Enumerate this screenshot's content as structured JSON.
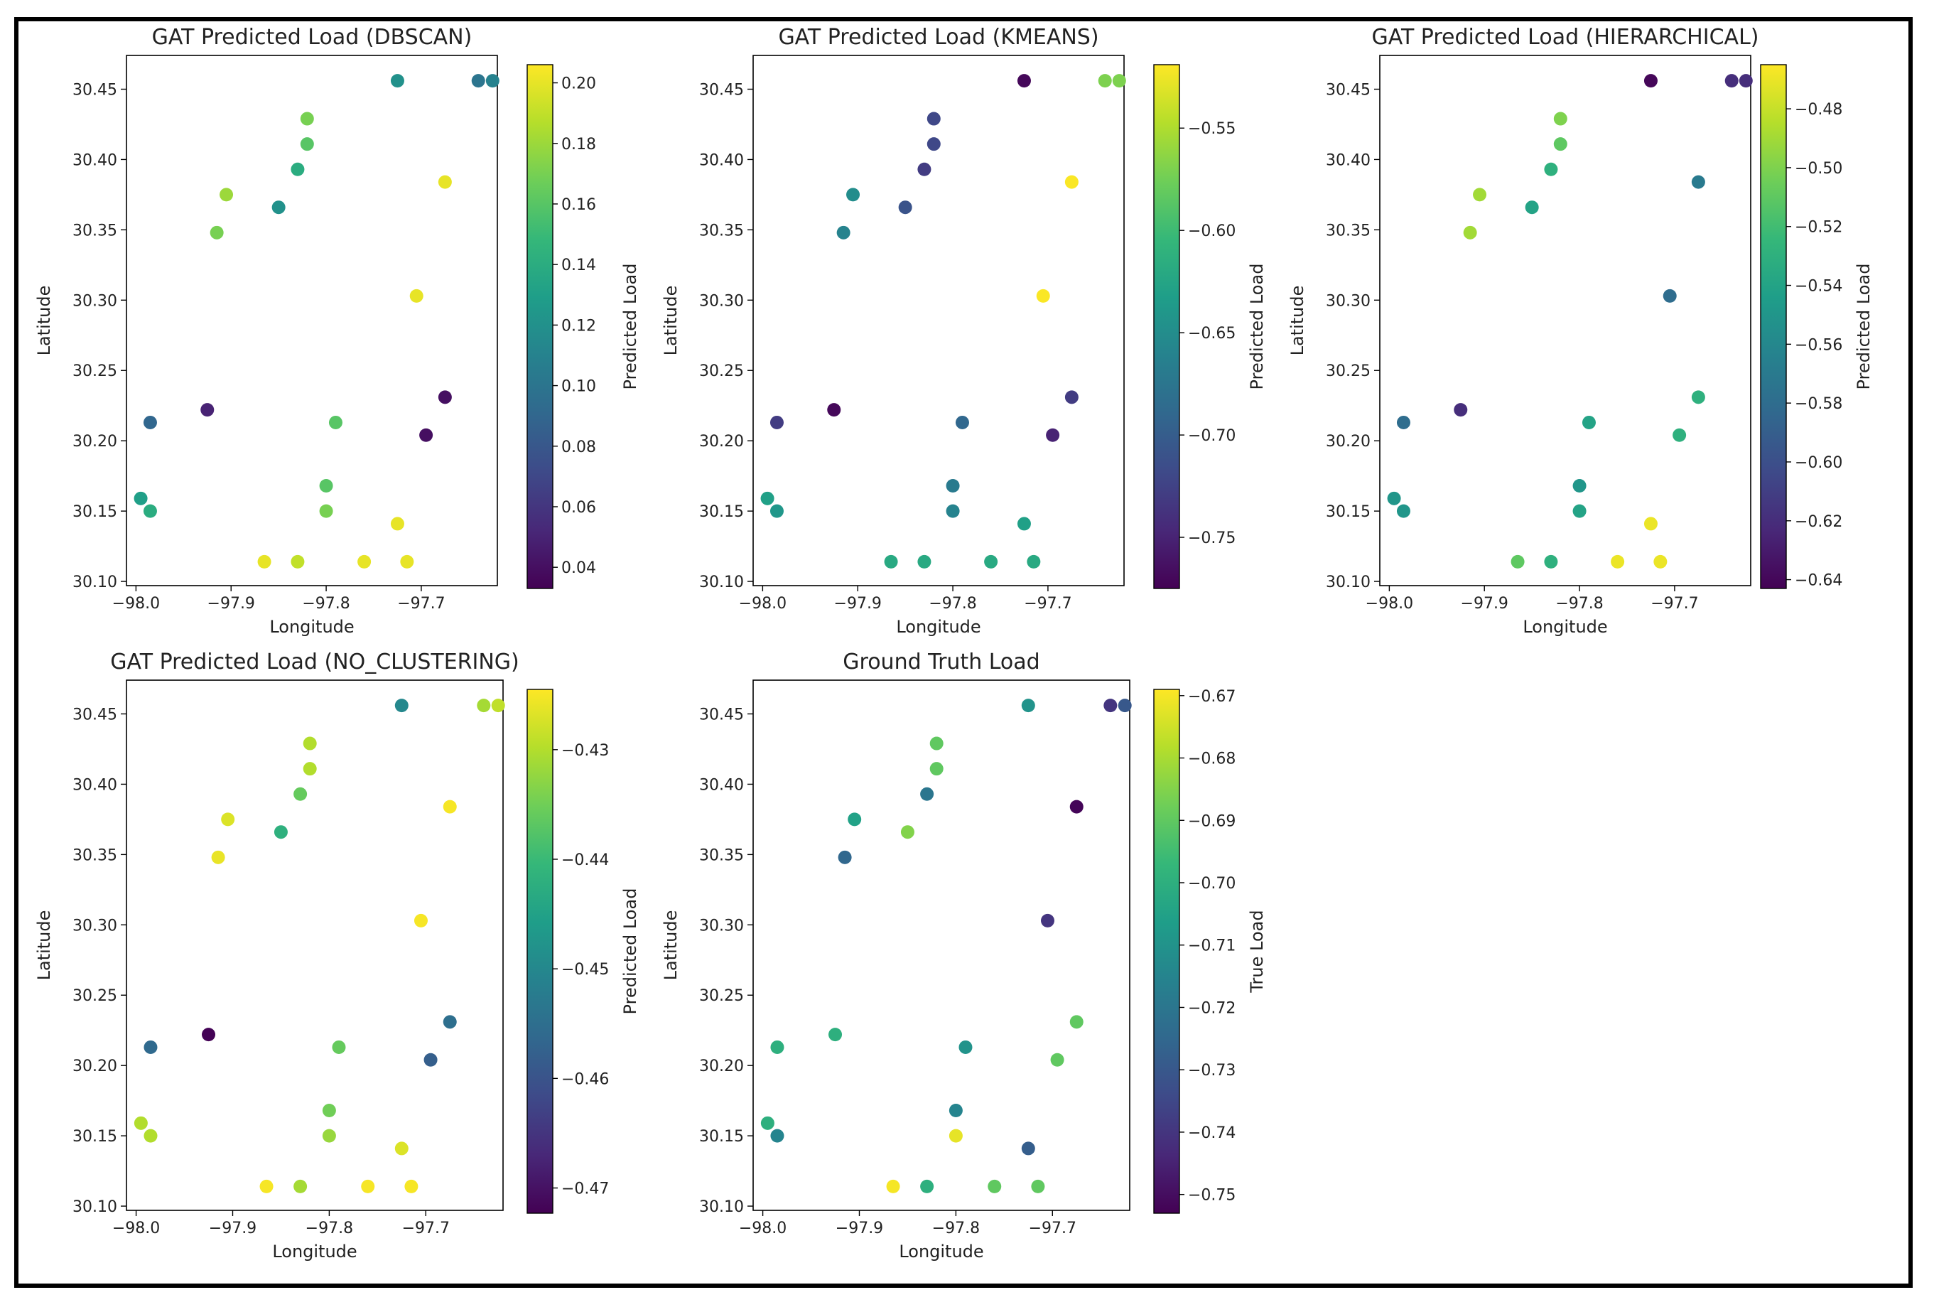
{
  "chart_data": [
    {
      "type": "scatter",
      "title": "GAT Predicted Load (DBSCAN)",
      "xlabel": "Longitude",
      "ylabel": "Latitude",
      "colorbar_label": "Predicted Load",
      "xlim": [
        -98.01,
        -97.62
      ],
      "ylim": [
        30.097,
        30.474
      ],
      "xticks": [
        -98.0,
        -97.9,
        -97.8,
        -97.7
      ],
      "xtick_labels": [
        "−98.0",
        "−97.9",
        "−97.8",
        "−97.7"
      ],
      "yticks": [
        30.1,
        30.15,
        30.2,
        30.25,
        30.3,
        30.35,
        30.4,
        30.45
      ],
      "ytick_labels": [
        "30.10",
        "30.15",
        "30.20",
        "30.25",
        "30.30",
        "30.35",
        "30.40",
        "30.45"
      ],
      "clim": [
        0.033,
        0.206
      ],
      "cticks": [
        0.04,
        0.06,
        0.08,
        0.1,
        0.12,
        0.14,
        0.16,
        0.18,
        0.2
      ],
      "ctick_labels": [
        "0.04",
        "0.06",
        "0.08",
        "0.10",
        "0.12",
        "0.14",
        "0.16",
        "0.18",
        "0.20"
      ],
      "x": [
        -97.725,
        -97.64,
        -97.625,
        -97.82,
        -97.82,
        -97.83,
        -97.905,
        -97.85,
        -97.915,
        -97.675,
        -97.705,
        -97.985,
        -97.925,
        -97.675,
        -97.79,
        -97.695,
        -97.8,
        -97.995,
        -97.985,
        -97.8,
        -97.725,
        -97.865,
        -97.83,
        -97.76,
        -97.715
      ],
      "y": [
        30.456,
        30.456,
        30.456,
        30.429,
        30.411,
        30.393,
        30.375,
        30.366,
        30.348,
        30.384,
        30.303,
        30.213,
        30.222,
        30.231,
        30.213,
        30.204,
        30.168,
        30.159,
        30.15,
        30.15,
        30.141,
        30.114,
        30.114,
        30.114,
        30.114
      ],
      "values": [
        0.12,
        0.1,
        0.11,
        0.17,
        0.16,
        0.14,
        0.18,
        0.12,
        0.17,
        0.2,
        0.2,
        0.09,
        0.05,
        0.04,
        0.16,
        0.04,
        0.16,
        0.13,
        0.14,
        0.17,
        0.2,
        0.2,
        0.19,
        0.2,
        0.2
      ]
    },
    {
      "type": "scatter",
      "title": "GAT Predicted Load (KMEANS)",
      "xlabel": "Longitude",
      "ylabel": "Latitude",
      "colorbar_label": "Predicted Load",
      "xlim": [
        -98.01,
        -97.62
      ],
      "ylim": [
        30.097,
        30.474
      ],
      "xticks": [
        -98.0,
        -97.9,
        -97.8,
        -97.7
      ],
      "xtick_labels": [
        "−98.0",
        "−97.9",
        "−97.8",
        "−97.7"
      ],
      "yticks": [
        30.1,
        30.15,
        30.2,
        30.25,
        30.3,
        30.35,
        30.4,
        30.45
      ],
      "ytick_labels": [
        "30.10",
        "30.15",
        "30.20",
        "30.25",
        "30.30",
        "30.35",
        "30.40",
        "30.45"
      ],
      "clim": [
        -0.775,
        -0.519
      ],
      "cticks": [
        -0.75,
        -0.7,
        -0.65,
        -0.6,
        -0.55
      ],
      "ctick_labels": [
        "−0.75",
        "−0.70",
        "−0.65",
        "−0.60",
        "−0.55"
      ],
      "x": [
        -97.725,
        -97.64,
        -97.625,
        -97.82,
        -97.82,
        -97.83,
        -97.905,
        -97.85,
        -97.915,
        -97.675,
        -97.705,
        -97.985,
        -97.925,
        -97.675,
        -97.79,
        -97.695,
        -97.8,
        -97.995,
        -97.985,
        -97.8,
        -97.725,
        -97.865,
        -97.83,
        -97.76,
        -97.715
      ],
      "y": [
        30.456,
        30.456,
        30.456,
        30.429,
        30.411,
        30.393,
        30.375,
        30.366,
        30.348,
        30.384,
        30.303,
        30.213,
        30.222,
        30.231,
        30.213,
        30.204,
        30.168,
        30.159,
        30.15,
        30.15,
        30.141,
        30.114,
        30.114,
        30.114,
        30.114
      ],
      "values": [
        -0.77,
        -0.57,
        -0.57,
        -0.72,
        -0.72,
        -0.73,
        -0.65,
        -0.71,
        -0.66,
        -0.52,
        -0.52,
        -0.73,
        -0.77,
        -0.73,
        -0.69,
        -0.75,
        -0.67,
        -0.63,
        -0.64,
        -0.66,
        -0.63,
        -0.62,
        -0.62,
        -0.62,
        -0.62
      ]
    },
    {
      "type": "scatter",
      "title": "GAT Predicted Load (HIERARCHICAL)",
      "xlabel": "Longitude",
      "ylabel": "Latitude",
      "colorbar_label": "Predicted Load",
      "xlim": [
        -98.01,
        -97.62
      ],
      "ylim": [
        30.097,
        30.474
      ],
      "xticks": [
        -98.0,
        -97.9,
        -97.8,
        -97.7
      ],
      "xtick_labels": [
        "−98.0",
        "−97.9",
        "−97.8",
        "−97.7"
      ],
      "yticks": [
        30.1,
        30.15,
        30.2,
        30.25,
        30.3,
        30.35,
        30.4,
        30.45
      ],
      "ytick_labels": [
        "30.10",
        "30.15",
        "30.20",
        "30.25",
        "30.30",
        "30.35",
        "30.40",
        "30.45"
      ],
      "clim": [
        -0.643,
        -0.465
      ],
      "cticks": [
        -0.64,
        -0.62,
        -0.6,
        -0.58,
        -0.56,
        -0.54,
        -0.52,
        -0.5,
        -0.48
      ],
      "ctick_labels": [
        "−0.64",
        "−0.62",
        "−0.60",
        "−0.58",
        "−0.56",
        "−0.54",
        "−0.52",
        "−0.50",
        "−0.48"
      ],
      "x": [
        -97.725,
        -97.64,
        -97.625,
        -97.82,
        -97.82,
        -97.83,
        -97.905,
        -97.85,
        -97.915,
        -97.675,
        -97.705,
        -97.985,
        -97.925,
        -97.675,
        -97.79,
        -97.695,
        -97.8,
        -97.995,
        -97.985,
        -97.8,
        -97.725,
        -97.865,
        -97.83,
        -97.76,
        -97.715
      ],
      "y": [
        30.456,
        30.456,
        30.456,
        30.429,
        30.411,
        30.393,
        30.375,
        30.366,
        30.348,
        30.384,
        30.303,
        30.213,
        30.222,
        30.231,
        30.213,
        30.204,
        30.168,
        30.159,
        30.15,
        30.15,
        30.141,
        30.114,
        30.114,
        30.114,
        30.114
      ],
      "values": [
        -0.64,
        -0.62,
        -0.62,
        -0.5,
        -0.51,
        -0.53,
        -0.49,
        -0.54,
        -0.49,
        -0.57,
        -0.58,
        -0.58,
        -0.62,
        -0.53,
        -0.54,
        -0.53,
        -0.55,
        -0.55,
        -0.55,
        -0.54,
        -0.47,
        -0.51,
        -0.53,
        -0.47,
        -0.47
      ]
    },
    {
      "type": "scatter",
      "title": "GAT Predicted Load (NO_CLUSTERING)",
      "xlabel": "Longitude",
      "ylabel": "Latitude",
      "colorbar_label": "Predicted Load",
      "xlim": [
        -98.01,
        -97.62
      ],
      "ylim": [
        30.097,
        30.474
      ],
      "xticks": [
        -98.0,
        -97.9,
        -97.8,
        -97.7
      ],
      "xtick_labels": [
        "−98.0",
        "−97.9",
        "−97.8",
        "−97.7"
      ],
      "yticks": [
        30.1,
        30.15,
        30.2,
        30.25,
        30.3,
        30.35,
        30.4,
        30.45
      ],
      "ytick_labels": [
        "30.10",
        "30.15",
        "30.20",
        "30.25",
        "30.30",
        "30.35",
        "30.40",
        "30.45"
      ],
      "clim": [
        -0.4723,
        -0.4245
      ],
      "cticks": [
        -0.47,
        -0.46,
        -0.45,
        -0.44,
        -0.43
      ],
      "ctick_labels": [
        "−0.47",
        "−0.46",
        "−0.45",
        "−0.44",
        "−0.43"
      ],
      "x": [
        -97.725,
        -97.64,
        -97.625,
        -97.82,
        -97.82,
        -97.83,
        -97.905,
        -97.85,
        -97.915,
        -97.675,
        -97.705,
        -97.985,
        -97.925,
        -97.675,
        -97.79,
        -97.695,
        -97.8,
        -97.995,
        -97.985,
        -97.8,
        -97.725,
        -97.865,
        -97.83,
        -97.76,
        -97.715
      ],
      "y": [
        30.456,
        30.456,
        30.456,
        30.429,
        30.411,
        30.393,
        30.375,
        30.366,
        30.348,
        30.384,
        30.303,
        30.213,
        30.222,
        30.231,
        30.213,
        30.204,
        30.168,
        30.159,
        30.15,
        30.15,
        30.141,
        30.114,
        30.114,
        30.114,
        30.114
      ],
      "values": [
        -0.45,
        -0.431,
        -0.429,
        -0.43,
        -0.43,
        -0.436,
        -0.427,
        -0.442,
        -0.426,
        -0.425,
        -0.425,
        -0.456,
        -0.472,
        -0.455,
        -0.436,
        -0.458,
        -0.435,
        -0.43,
        -0.43,
        -0.432,
        -0.427,
        -0.425,
        -0.431,
        -0.425,
        -0.425
      ]
    },
    {
      "type": "scatter",
      "title": "Ground Truth Load",
      "xlabel": "Longitude",
      "ylabel": "Latitude",
      "colorbar_label": "True Load",
      "xlim": [
        -98.01,
        -97.62
      ],
      "ylim": [
        30.097,
        30.474
      ],
      "xticks": [
        -98.0,
        -97.9,
        -97.8,
        -97.7
      ],
      "xtick_labels": [
        "−98.0",
        "−97.9",
        "−97.8",
        "−97.7"
      ],
      "yticks": [
        30.1,
        30.15,
        30.2,
        30.25,
        30.3,
        30.35,
        30.4,
        30.45
      ],
      "ytick_labels": [
        "30.10",
        "30.15",
        "30.20",
        "30.25",
        "30.30",
        "30.35",
        "30.40",
        "30.45"
      ],
      "clim": [
        -0.753,
        -0.669
      ],
      "cticks": [
        -0.75,
        -0.74,
        -0.73,
        -0.72,
        -0.71,
        -0.7,
        -0.69,
        -0.68,
        -0.67
      ],
      "ctick_labels": [
        "−0.75",
        "−0.74",
        "−0.73",
        "−0.72",
        "−0.71",
        "−0.70",
        "−0.69",
        "−0.68",
        "−0.67"
      ],
      "x": [
        -97.725,
        -97.64,
        -97.625,
        -97.82,
        -97.82,
        -97.83,
        -97.905,
        -97.85,
        -97.915,
        -97.675,
        -97.705,
        -97.985,
        -97.925,
        -97.675,
        -97.79,
        -97.695,
        -97.8,
        -97.995,
        -97.985,
        -97.8,
        -97.725,
        -97.865,
        -97.83,
        -97.76,
        -97.715
      ],
      "y": [
        30.456,
        30.456,
        30.456,
        30.429,
        30.411,
        30.393,
        30.375,
        30.366,
        30.348,
        30.384,
        30.303,
        30.213,
        30.222,
        30.231,
        30.213,
        30.204,
        30.168,
        30.159,
        30.15,
        30.15,
        30.141,
        30.114,
        30.114,
        30.114,
        30.114
      ],
      "values": [
        -0.71,
        -0.74,
        -0.73,
        -0.69,
        -0.69,
        -0.72,
        -0.705,
        -0.685,
        -0.725,
        -0.752,
        -0.74,
        -0.7,
        -0.7,
        -0.69,
        -0.71,
        -0.69,
        -0.715,
        -0.7,
        -0.715,
        -0.672,
        -0.728,
        -0.67,
        -0.7,
        -0.69,
        -0.69
      ]
    }
  ]
}
